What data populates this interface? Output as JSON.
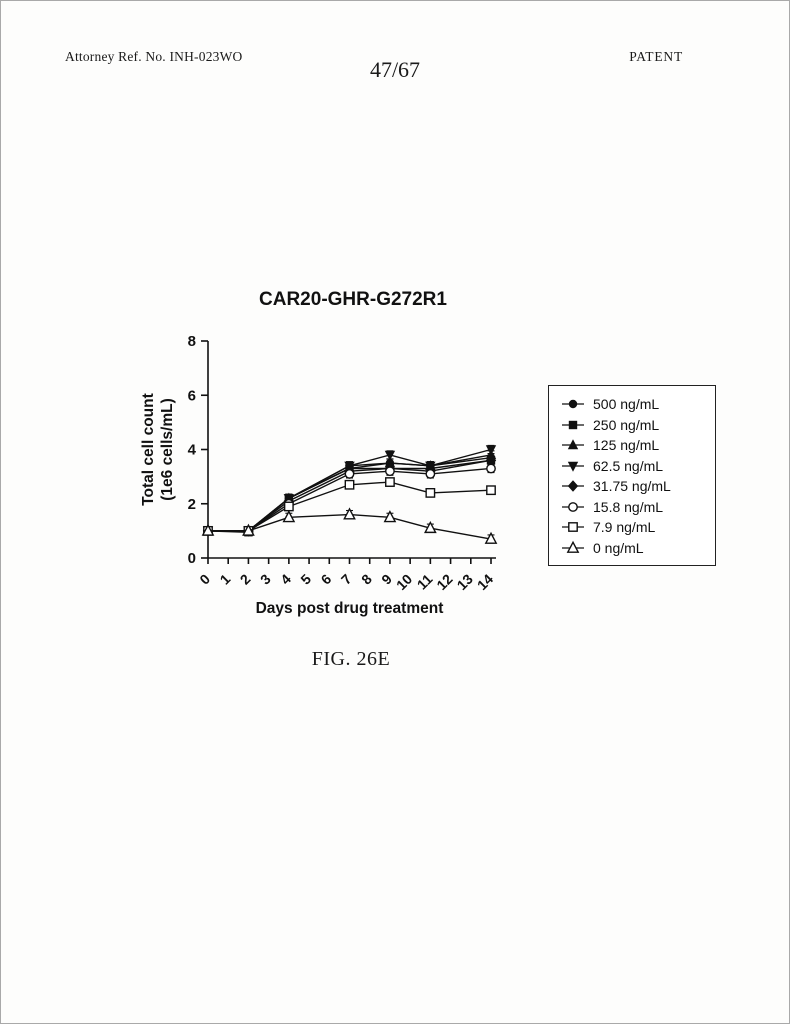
{
  "page": {
    "header_left": "Attorney Ref. No. INH-023WO",
    "header_center": "47/67",
    "header_right": "PATENT",
    "figure_caption": "FIG. 26E"
  },
  "chart_data": {
    "type": "line",
    "title": "CAR20-GHR-G272R1",
    "xlabel": "Days post drug treatment",
    "ylabel": "Total cell count (1e6 cells/mL)",
    "ylabel_line1": "Total cell count",
    "ylabel_line2": "(1e6 cells/mL)",
    "xlim": [
      0,
      14
    ],
    "ylim": [
      0,
      8
    ],
    "yticks": [
      0,
      2,
      4,
      6,
      8
    ],
    "xticks": [
      0,
      1,
      2,
      3,
      4,
      5,
      6,
      7,
      8,
      9,
      10,
      11,
      12,
      13,
      14
    ],
    "grid": false,
    "legend_position": "right",
    "error_bar": 0.15,
    "x": [
      0,
      2,
      4,
      7,
      9,
      11,
      14
    ],
    "series": [
      {
        "name": "500 ng/mL",
        "marker": "circle-filled",
        "values": [
          1.0,
          1.0,
          2.2,
          3.4,
          3.5,
          3.4,
          3.7
        ]
      },
      {
        "name": "250 ng/mL",
        "marker": "square-filled",
        "values": [
          1.0,
          0.95,
          2.2,
          3.3,
          3.3,
          3.3,
          3.6
        ]
      },
      {
        "name": "125 ng/mL",
        "marker": "triangle-up-filled",
        "values": [
          1.0,
          1.0,
          2.2,
          3.3,
          3.5,
          3.4,
          3.8
        ]
      },
      {
        "name": "62.5 ng/mL",
        "marker": "triangle-down-filled",
        "values": [
          1.0,
          1.0,
          2.2,
          3.4,
          3.8,
          3.4,
          4.0
        ]
      },
      {
        "name": "31.75 ng/mL",
        "marker": "diamond-filled",
        "values": [
          1.0,
          1.0,
          2.1,
          3.2,
          3.3,
          3.2,
          3.6
        ]
      },
      {
        "name": "15.8 ng/mL",
        "marker": "circle-open",
        "values": [
          1.0,
          1.0,
          2.0,
          3.1,
          3.2,
          3.1,
          3.3
        ]
      },
      {
        "name": "7.9 ng/mL",
        "marker": "square-open",
        "values": [
          1.0,
          1.0,
          1.9,
          2.7,
          2.8,
          2.4,
          2.5
        ]
      },
      {
        "name": "0 ng/mL",
        "marker": "triangle-up-open",
        "values": [
          1.0,
          1.0,
          1.5,
          1.6,
          1.5,
          1.1,
          0.7
        ]
      }
    ]
  }
}
